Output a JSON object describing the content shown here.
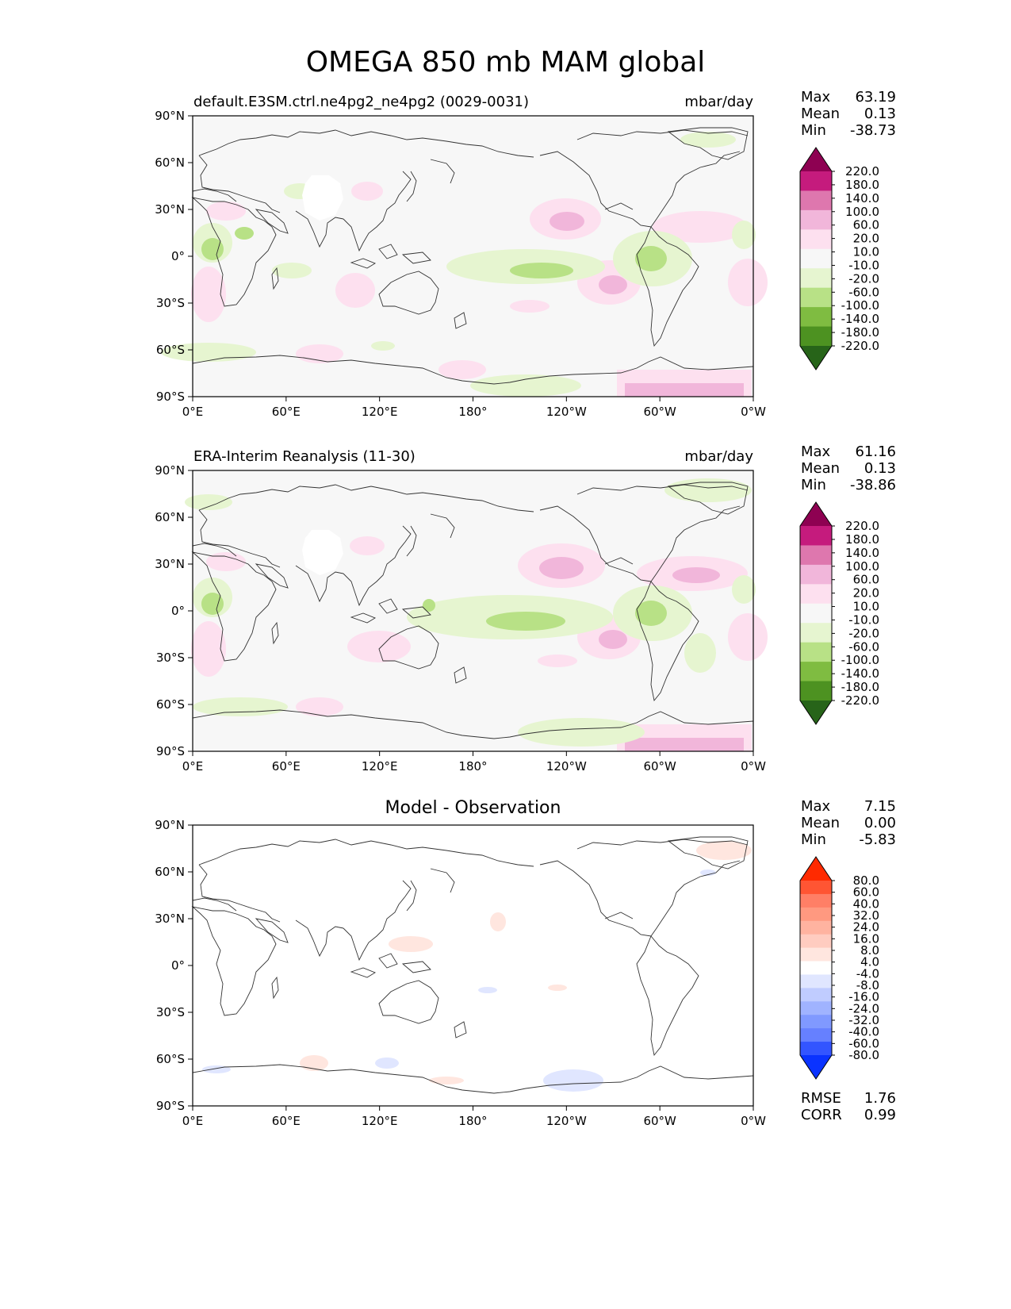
{
  "title": "OMEGA 850 mb MAM global",
  "colors": {
    "frame": "#000000",
    "background": "#f7f7f7",
    "coast": "#333333"
  },
  "axes": {
    "lat_ticks": [
      "90°N",
      "60°N",
      "30°N",
      "0°",
      "30°S",
      "60°S",
      "90°S"
    ],
    "lon_ticks": [
      "0°E",
      "60°E",
      "120°E",
      "180°",
      "120°W",
      "60°W",
      "0°W"
    ]
  },
  "panels": [
    {
      "title_left": "default.E3SM.ctrl.ne4pg2_ne4pg2 (0029-0031)",
      "title_right": "mbar/day",
      "title_center": "",
      "stats": [
        {
          "label": "Max",
          "value": "63.19"
        },
        {
          "label": "Mean",
          "value": "0.13"
        },
        {
          "label": "Min",
          "value": "-38.73"
        }
      ],
      "colorbar_labels": [
        "220.0",
        "180.0",
        "140.0",
        "100.0",
        "60.0",
        "20.0",
        "10.0",
        "-10.0",
        "-20.0",
        "-60.0",
        "-100.0",
        "-140.0",
        "-180.0",
        "-220.0"
      ],
      "colorbar_colors": [
        "#8e0152",
        "#c51b7d",
        "#de77ae",
        "#f1b6da",
        "#fde0ef",
        "#f7f7f7",
        "#e6f5d0",
        "#b8e186",
        "#7fbc41",
        "#4d9221",
        "#276419"
      ]
    },
    {
      "title_left": "ERA-Interim Reanalysis (11-30)",
      "title_right": "mbar/day",
      "title_center": "",
      "stats": [
        {
          "label": "Max",
          "value": "61.16"
        },
        {
          "label": "Mean",
          "value": "0.13"
        },
        {
          "label": "Min",
          "value": "-38.86"
        }
      ],
      "colorbar_labels": [
        "220.0",
        "180.0",
        "140.0",
        "100.0",
        "60.0",
        "20.0",
        "10.0",
        "-10.0",
        "-20.0",
        "-60.0",
        "-100.0",
        "-140.0",
        "-180.0",
        "-220.0"
      ],
      "colorbar_colors": [
        "#8e0152",
        "#c51b7d",
        "#de77ae",
        "#f1b6da",
        "#fde0ef",
        "#f7f7f7",
        "#e6f5d0",
        "#b8e186",
        "#7fbc41",
        "#4d9221",
        "#276419"
      ]
    },
    {
      "title_left": "",
      "title_right": "",
      "title_center": "Model - Observation",
      "stats": [
        {
          "label": "Max",
          "value": "7.15"
        },
        {
          "label": "Mean",
          "value": "0.00"
        },
        {
          "label": "Min",
          "value": "-5.83"
        }
      ],
      "extra_stats": [
        {
          "label": "RMSE",
          "value": "1.76"
        },
        {
          "label": "CORR",
          "value": "0.99"
        }
      ],
      "colorbar_labels": [
        "80.0",
        "60.0",
        "40.0",
        "32.0",
        "24.0",
        "16.0",
        "8.0",
        "4.0",
        "-4.0",
        "-8.0",
        "-16.0",
        "-24.0",
        "-32.0",
        "-40.0",
        "-60.0",
        "-80.0"
      ],
      "colorbar_colors": [
        "#ff2a00",
        "#ff5533",
        "#ff7f66",
        "#ff9980",
        "#ffb3a0",
        "#ffccc0",
        "#ffe6df",
        "#ffffff",
        "#e0e6ff",
        "#c0ccff",
        "#a0b3ff",
        "#8099ff",
        "#6680ff",
        "#3355ff",
        "#0a33ff"
      ]
    }
  ]
}
